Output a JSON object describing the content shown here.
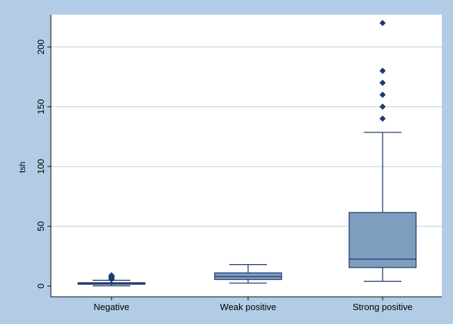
{
  "chart_data": {
    "type": "box",
    "title": "",
    "xlabel": "",
    "ylabel": "tsh",
    "ylim": [
      -9,
      227
    ],
    "yticks": [
      0,
      50,
      100,
      150,
      200
    ],
    "grid": true,
    "categories": [
      "Negative",
      "Weak positive",
      "Strong positive"
    ],
    "boxes": [
      {
        "category": "Negative",
        "whisker_low": 0.2,
        "q1": 1.5,
        "median": 2.2,
        "q3": 2.8,
        "whisker_high": 4.8,
        "outliers": [
          5.6,
          6.2,
          6.8,
          7.3,
          7.8,
          8.3,
          9.0
        ]
      },
      {
        "category": "Weak positive",
        "whisker_low": 2.5,
        "q1": 5.5,
        "median": 8.0,
        "q3": 11.0,
        "whisker_high": 18.0,
        "outliers": []
      },
      {
        "category": "Strong positive",
        "whisker_low": 4.0,
        "q1": 15.5,
        "median": 22.5,
        "q3": 61.5,
        "whisker_high": 128.5,
        "outliers": [
          140,
          150,
          160,
          170,
          180,
          220
        ]
      }
    ],
    "colors": {
      "background": "#b2cce6",
      "plot_area": "#ffffff",
      "box_fill": "#7f9ebf",
      "line": "#1f3a6e",
      "grid": "#b4cde6"
    }
  }
}
